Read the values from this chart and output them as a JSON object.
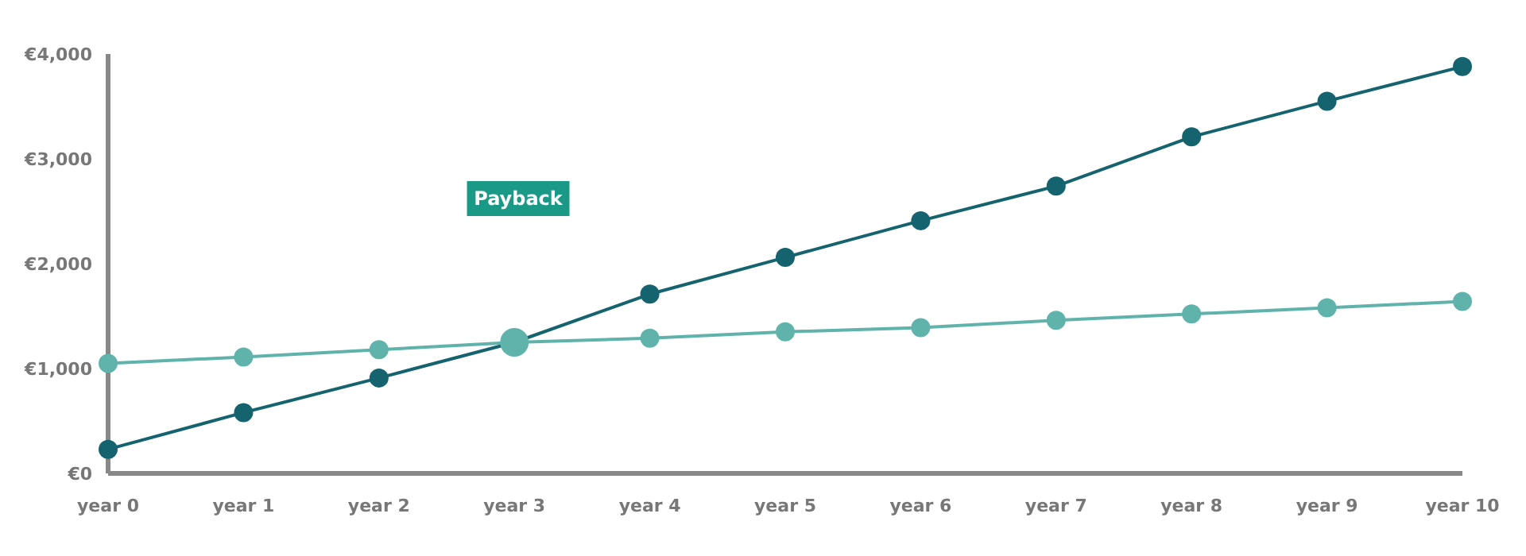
{
  "chart_data": {
    "type": "line",
    "categories": [
      "year 0",
      "year 1",
      "year 2",
      "year 3",
      "year 4",
      "year 5",
      "year 6",
      "year 7",
      "year 8",
      "year 9",
      "year 10"
    ],
    "series": [
      {
        "color": "#14636e",
        "values": [
          230,
          580,
          910,
          1250,
          1710,
          2060,
          2410,
          2740,
          3210,
          3550,
          3880
        ]
      },
      {
        "color": "#5fb3aa",
        "values": [
          1050,
          1110,
          1180,
          1250,
          1290,
          1350,
          1390,
          1460,
          1520,
          1580,
          1640
        ]
      },
      {
        "type": "scatter",
        "color": "#5fb3aa",
        "x": [
          "year 3"
        ],
        "values": [
          1250
        ]
      }
    ],
    "ylim": [
      0,
      4000
    ],
    "yticks": [
      {
        "value": 0,
        "label": "€0"
      },
      {
        "value": 1000,
        "label": "€1,000"
      },
      {
        "value": 2000,
        "label": "€2,000"
      },
      {
        "value": 3000,
        "label": "€3,000"
      },
      {
        "value": 4000,
        "label": "€4,000"
      }
    ],
    "grid": false,
    "marker": "circle",
    "line_style": "solid",
    "annotations": [
      "Payback"
    ]
  }
}
